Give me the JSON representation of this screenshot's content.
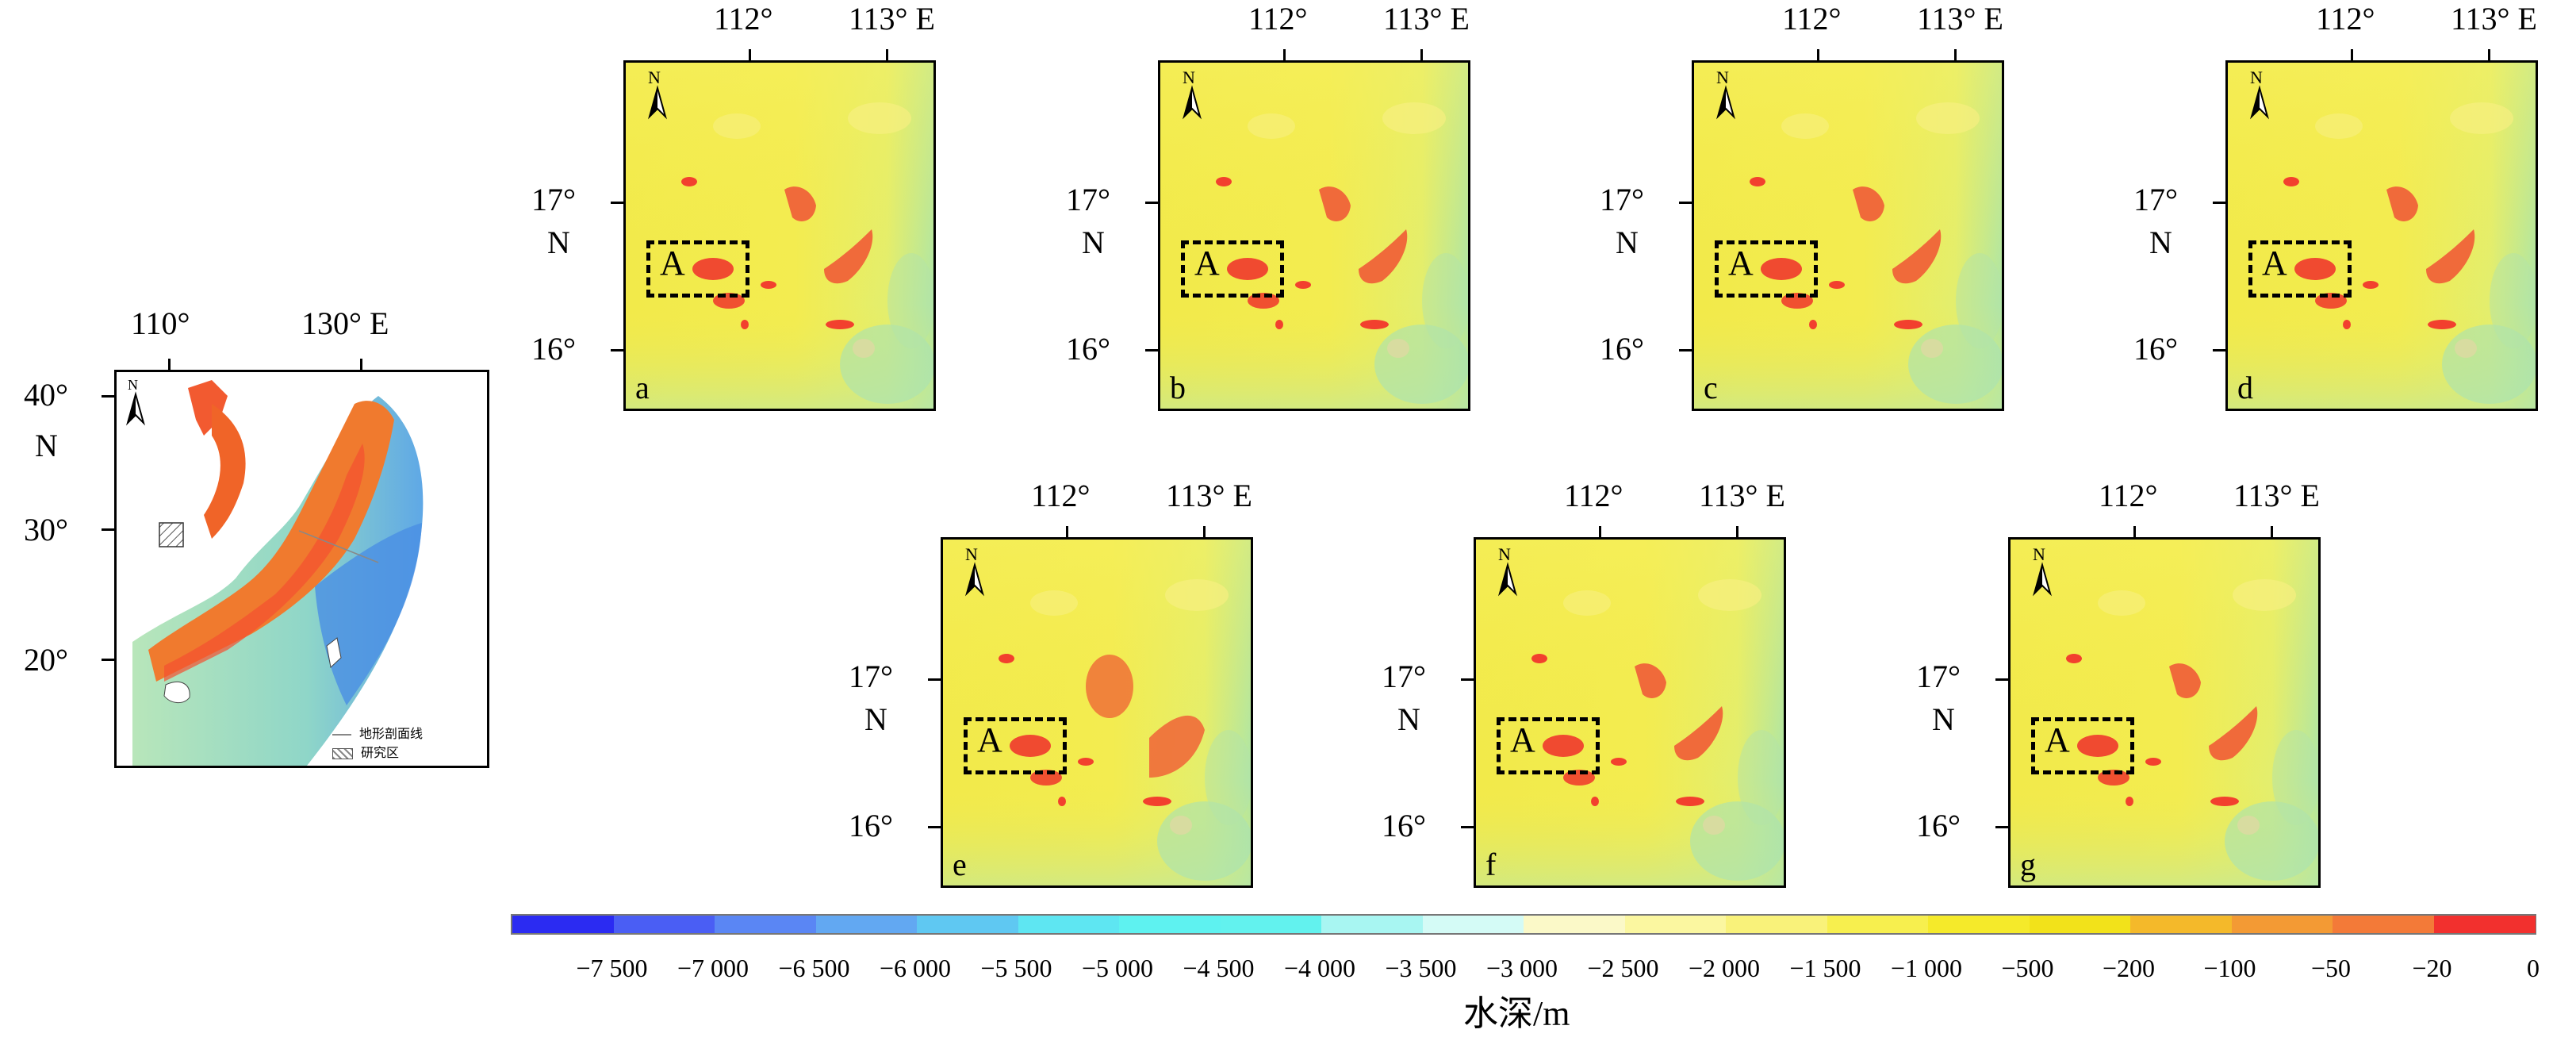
{
  "overview": {
    "lon_labels": [
      "110°",
      "130° E"
    ],
    "lat_labels": [
      "40°",
      "N",
      "30°",
      "20°"
    ],
    "north": "N",
    "legend": [
      {
        "label": "地形剖面线",
        "kind": "line"
      },
      {
        "label": "研究区",
        "kind": "hatch"
      }
    ]
  },
  "panels": [
    {
      "id": "a",
      "lon_labels": [
        "112°",
        "113° E"
      ],
      "lat_labels": [
        "17°",
        "N",
        "16°"
      ],
      "north": "N",
      "box": "A"
    },
    {
      "id": "b",
      "lon_labels": [
        "112°",
        "113° E"
      ],
      "lat_labels": [
        "17°",
        "N",
        "16°"
      ],
      "north": "N",
      "box": "A"
    },
    {
      "id": "c",
      "lon_labels": [
        "112°",
        "113° E"
      ],
      "lat_labels": [
        "17°",
        "N",
        "16°"
      ],
      "north": "N",
      "box": "A"
    },
    {
      "id": "d",
      "lon_labels": [
        "112°",
        "113° E"
      ],
      "lat_labels": [
        "17°",
        "N",
        "16°"
      ],
      "north": "N",
      "box": "A"
    },
    {
      "id": "e",
      "lon_labels": [
        "112°",
        "113° E"
      ],
      "lat_labels": [
        "17°",
        "N",
        "16°"
      ],
      "north": "N",
      "box": "A"
    },
    {
      "id": "f",
      "lon_labels": [
        "112°",
        "113° E"
      ],
      "lat_labels": [
        "17°",
        "N",
        "16°"
      ],
      "north": "N",
      "box": "A"
    },
    {
      "id": "g",
      "lon_labels": [
        "112°",
        "113° E"
      ],
      "lat_labels": [
        "17°",
        "N",
        "16°"
      ],
      "north": "N",
      "box": "A"
    }
  ],
  "colorbar": {
    "title": "水深/m",
    "labels": [
      "−7 500",
      "−7 000",
      "−6 500",
      "−6 000",
      "−5 500",
      "−5 000",
      "−4 500",
      "−4 000",
      "−3 500",
      "−3 000",
      "−2 500",
      "−2 000",
      "−1 500",
      "−1 000",
      "−500",
      "−200",
      "−100",
      "−50",
      "−20",
      "0"
    ],
    "colors": [
      "#2b2bf2",
      "#4a5ef4",
      "#5a86f4",
      "#62a8f2",
      "#5fc8f2",
      "#5ee6f2",
      "#5ef2f0",
      "#62f2ee",
      "#a8f6f2",
      "#d4fbf6",
      "#fbf9c8",
      "#fbf7a0",
      "#f9f27a",
      "#f7ef4e",
      "#f5ea2a",
      "#f2e21a",
      "#f4b92a",
      "#f39a34",
      "#f37a38",
      "#f2302e"
    ]
  }
}
